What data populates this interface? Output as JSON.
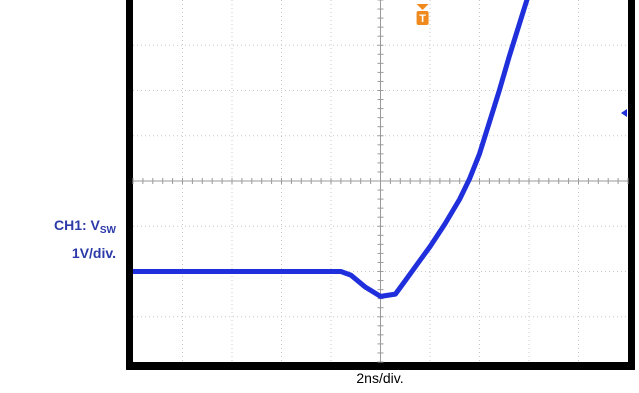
{
  "chart_data": {
    "type": "line",
    "channel_label": "CH1: V",
    "channel_label_sub": "SW",
    "y_scale_label": "1V/div.",
    "x_scale_label": "2ns/div.",
    "grid": true,
    "divisions": {
      "x": 10,
      "y": 8
    },
    "trigger_marker": "T",
    "series": [
      {
        "color": "#1f2fdc",
        "x": [
          -5.0,
          -0.8,
          -0.6,
          -0.3,
          0.0,
          0.3,
          0.5,
          0.8,
          1.0,
          1.3,
          1.6,
          1.8,
          2.0,
          2.2,
          2.4,
          2.6,
          2.8,
          3.0,
          3.1
        ],
        "y": [
          -2.0,
          -2.0,
          -2.08,
          -2.35,
          -2.55,
          -2.5,
          -2.2,
          -1.75,
          -1.45,
          -0.95,
          -0.4,
          0.05,
          0.6,
          1.3,
          2.0,
          2.75,
          3.45,
          4.15,
          4.6
        ]
      }
    ]
  },
  "colors": {
    "frame": "#000000",
    "grid": "#c8c8c8",
    "trace": "#1f2fdc",
    "label": "#2b3aa8",
    "trigger": "#f08a1e",
    "ref_marker": "#1f2fdc"
  }
}
